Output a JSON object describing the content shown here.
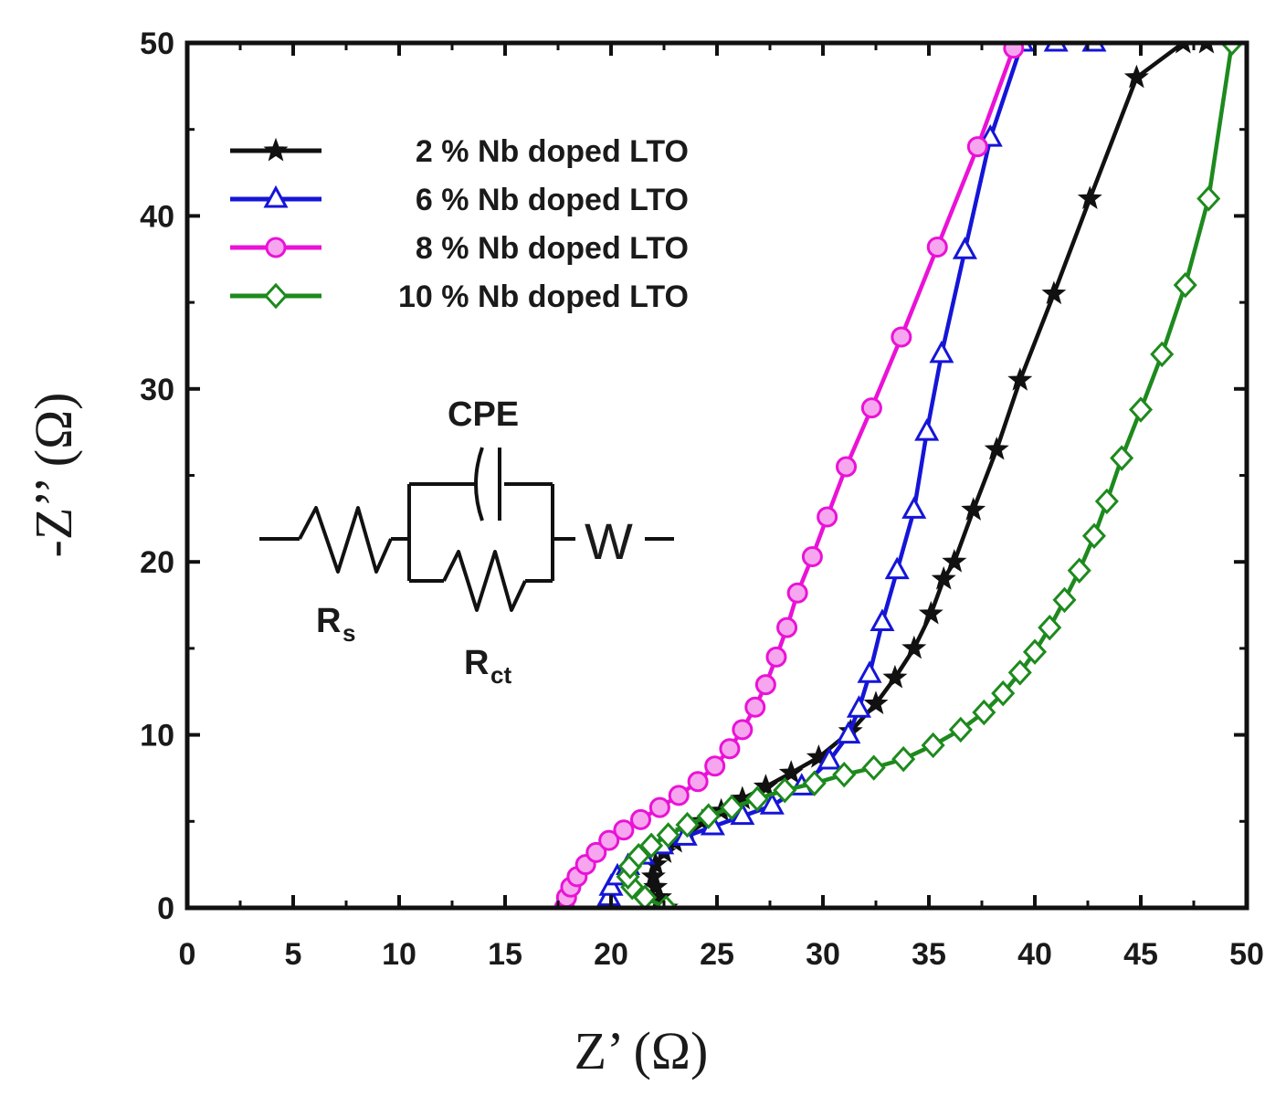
{
  "chart_data": {
    "type": "scatter",
    "title": "",
    "xlabel": "Z’ (Ω)",
    "ylabel": "-Z’’ (Ω)",
    "xlim": [
      0,
      50
    ],
    "ylim": [
      0,
      50
    ],
    "xticks": [
      0,
      5,
      10,
      15,
      20,
      25,
      30,
      35,
      40,
      45,
      50
    ],
    "yticks": [
      0,
      10,
      20,
      30,
      40,
      50
    ],
    "grid": false,
    "legend_position": "top-left",
    "series": [
      {
        "name": "2 % Nb doped LTO",
        "color": "#111111",
        "marker": "star",
        "x": [
          22.6,
          22.3,
          22.1,
          22.0,
          22.1,
          22.5,
          23.0,
          23.6,
          24.3,
          25.2,
          26.2,
          27.3,
          28.5,
          29.8,
          31.3,
          32.5,
          33.4,
          34.3,
          35.1,
          35.7,
          36.2,
          37.1,
          38.2,
          39.3,
          40.9,
          42.6,
          44.8,
          47.0,
          48.1
        ],
        "y": [
          0.0,
          0.6,
          1.2,
          1.8,
          2.5,
          3.2,
          3.8,
          4.4,
          5.0,
          5.6,
          6.3,
          7.0,
          7.8,
          8.7,
          10.2,
          11.8,
          13.3,
          15.0,
          17.0,
          19.0,
          20.0,
          23.0,
          26.5,
          30.5,
          35.5,
          41.0,
          48.0,
          50.0,
          50.0
        ]
      },
      {
        "name": "6 % Nb doped LTO",
        "color": "#1515d8",
        "marker": "triangle",
        "x": [
          20.0,
          19.9,
          20.0,
          20.3,
          20.8,
          21.5,
          22.4,
          23.5,
          24.8,
          26.2,
          27.6,
          29.0,
          30.3,
          31.2,
          31.7,
          32.2,
          32.8,
          33.5,
          34.3,
          34.9,
          35.6,
          36.7,
          37.9,
          39.4,
          41.0,
          42.8
        ],
        "y": [
          0.0,
          0.6,
          1.2,
          1.8,
          2.4,
          3.0,
          3.6,
          4.1,
          4.7,
          5.3,
          5.9,
          7.0,
          8.5,
          10.0,
          11.5,
          13.5,
          16.5,
          19.5,
          23.0,
          27.5,
          32.0,
          38.0,
          44.5,
          50.0,
          50.0,
          50.0
        ]
      },
      {
        "name": "8 % Nb doped LTO",
        "color": "#ea12d6",
        "marker": "circle",
        "x": [
          17.8,
          17.9,
          18.1,
          18.4,
          18.8,
          19.3,
          19.9,
          20.6,
          21.4,
          22.3,
          23.2,
          24.1,
          24.9,
          25.6,
          26.2,
          26.8,
          27.3,
          27.8,
          28.3,
          28.8,
          29.5,
          30.2,
          31.1,
          32.3,
          33.7,
          35.4,
          37.3,
          39.0
        ],
        "y": [
          0.0,
          0.6,
          1.2,
          1.8,
          2.5,
          3.2,
          3.9,
          4.5,
          5.1,
          5.8,
          6.5,
          7.3,
          8.2,
          9.2,
          10.3,
          11.6,
          12.9,
          14.5,
          16.2,
          18.2,
          20.3,
          22.6,
          25.5,
          28.9,
          33.0,
          38.2,
          44.0,
          49.7
        ]
      },
      {
        "name": "10 % Nb doped LTO",
        "color": "#1d8a1d",
        "marker": "diamond",
        "x": [
          22.6,
          21.6,
          21.0,
          20.8,
          20.9,
          21.3,
          21.9,
          22.7,
          23.6,
          24.6,
          25.7,
          26.9,
          28.2,
          29.6,
          31.0,
          32.4,
          33.8,
          35.2,
          36.5,
          37.6,
          38.5,
          39.3,
          40.0,
          40.7,
          41.4,
          42.1,
          42.8,
          43.4,
          44.1,
          45.0,
          46.0,
          47.1,
          48.2,
          49.3
        ],
        "y": [
          0.0,
          0.6,
          1.2,
          1.8,
          2.4,
          3.0,
          3.6,
          4.2,
          4.8,
          5.3,
          5.8,
          6.3,
          6.8,
          7.2,
          7.7,
          8.1,
          8.6,
          9.4,
          10.3,
          11.3,
          12.4,
          13.6,
          14.8,
          16.2,
          17.8,
          19.5,
          21.5,
          23.5,
          26.0,
          28.8,
          32.0,
          36.0,
          41.0,
          50.0
        ]
      }
    ],
    "inset": {
      "labels": [
        "CPE",
        "R",
        "s",
        "R",
        "ct",
        "W"
      ]
    }
  }
}
